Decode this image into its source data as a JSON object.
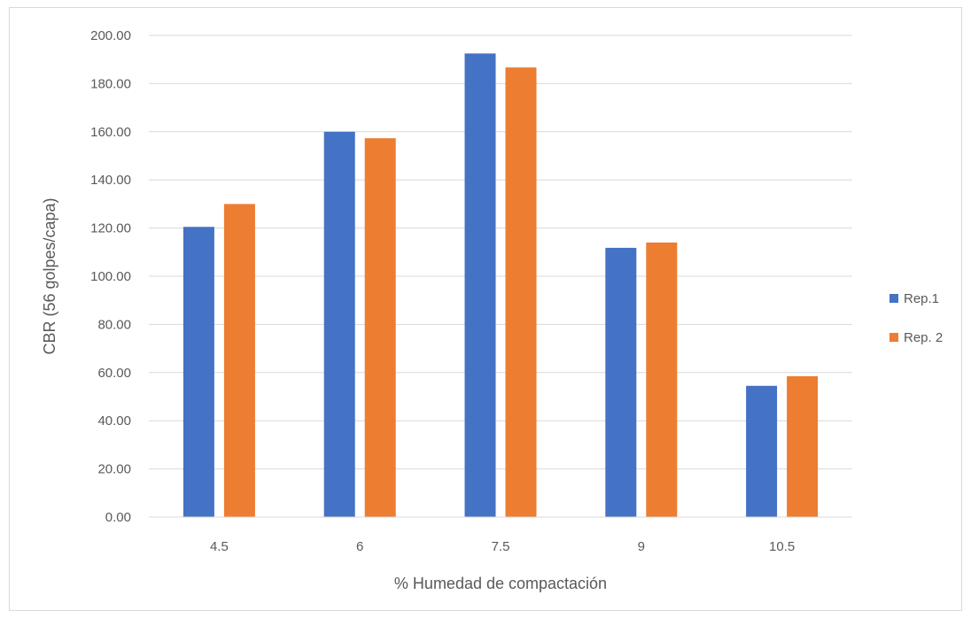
{
  "chart_data": {
    "type": "bar",
    "categories": [
      "4.5",
      "6",
      "7.5",
      "9",
      "10.5"
    ],
    "series": [
      {
        "name": "Rep.1",
        "values": [
          120.5,
          160.0,
          192.5,
          111.8,
          54.5
        ],
        "color": "#4472C4"
      },
      {
        "name": "Rep. 2",
        "values": [
          130.0,
          157.3,
          186.7,
          114.0,
          58.5
        ],
        "color": "#ED7D31"
      }
    ],
    "title": "",
    "xlabel": "% Humedad de compactación",
    "ylabel": "CBR (56 golpes/capa)",
    "ylim": [
      0,
      200
    ],
    "yticks": [
      "0.00",
      "20.00",
      "40.00",
      "60.00",
      "80.00",
      "100.00",
      "120.00",
      "140.00",
      "160.00",
      "180.00",
      "200.00"
    ],
    "grid": true,
    "legend": "right"
  }
}
